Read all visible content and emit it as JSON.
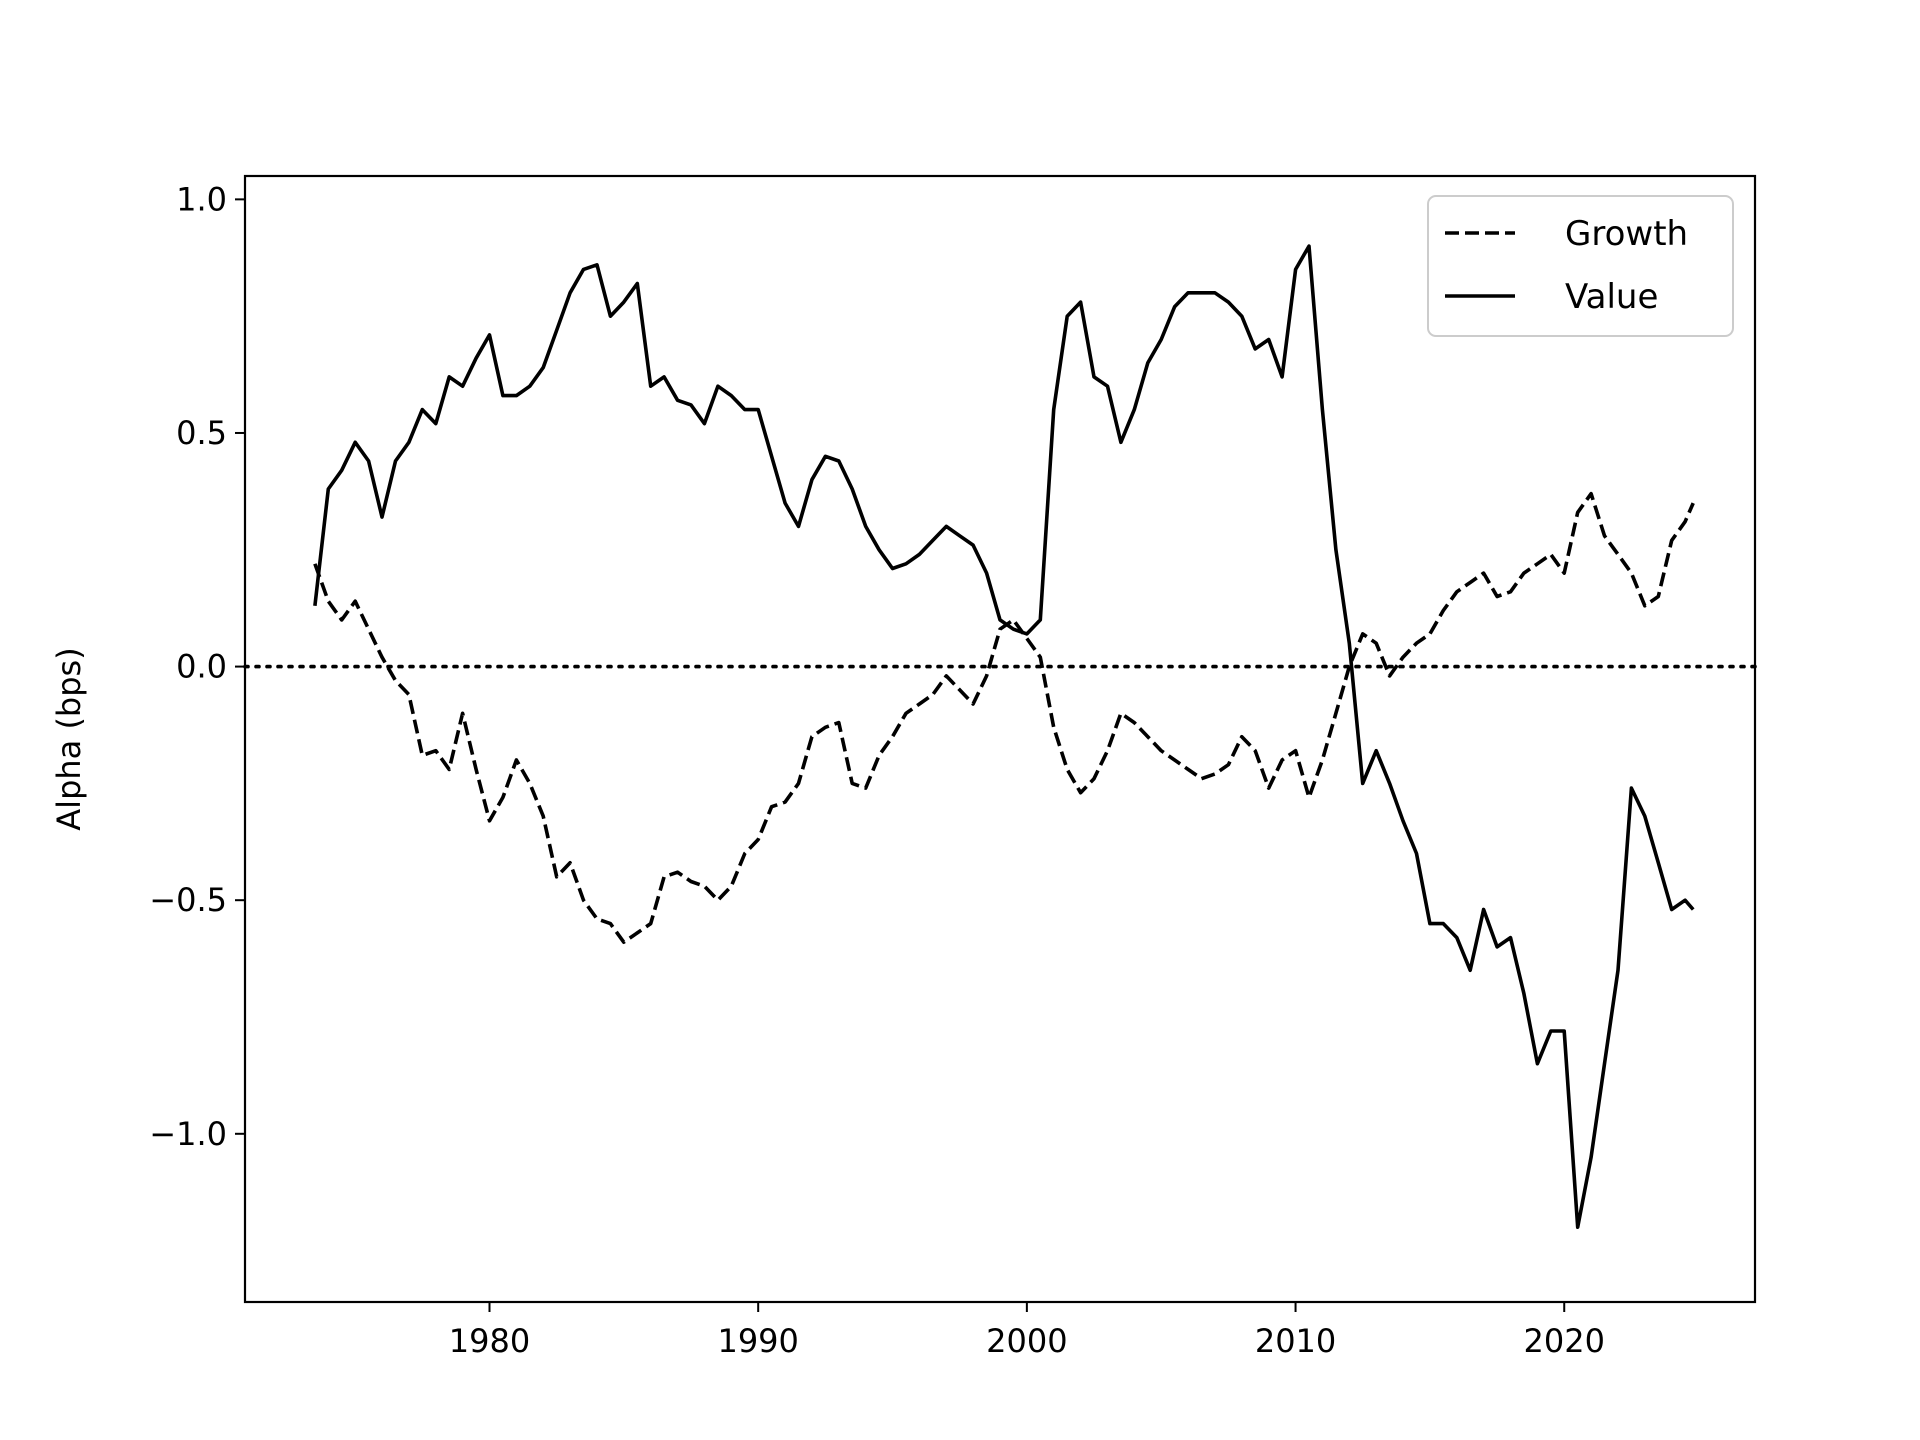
{
  "chart_data": {
    "type": "line",
    "title": "",
    "xlabel": "",
    "ylabel": "Alpha (bps)",
    "xlim": [
      1970.9,
      2027.1
    ],
    "ylim": [
      -1.36,
      1.05
    ],
    "x_ticks": [
      1980,
      1990,
      2000,
      2010,
      2020
    ],
    "x_tick_labels": [
      "1980",
      "1990",
      "2000",
      "2010",
      "2020"
    ],
    "y_ticks": [
      1.0,
      0.5,
      0.0,
      -0.5,
      -1.0
    ],
    "y_tick_labels": [
      "1.0",
      "0.5",
      "0.0",
      "−0.5",
      "−1.0"
    ],
    "grid": false,
    "legend": {
      "position": "upper-right",
      "entries": [
        "Growth",
        "Value"
      ]
    },
    "reference_line": {
      "y": 0.0,
      "style": "dotted"
    },
    "series": [
      {
        "name": "Growth",
        "line_style": "dashed",
        "color": "#000000",
        "x": [
          1973.5,
          1974.0,
          1974.5,
          1975.0,
          1975.5,
          1976.0,
          1976.5,
          1977.0,
          1977.5,
          1978.0,
          1978.5,
          1979.0,
          1979.5,
          1980.0,
          1980.5,
          1981.0,
          1981.5,
          1982.0,
          1982.5,
          1983.0,
          1983.5,
          1984.0,
          1984.5,
          1985.0,
          1985.5,
          1986.0,
          1986.5,
          1987.0,
          1987.5,
          1988.0,
          1988.5,
          1989.0,
          1989.5,
          1990.0,
          1990.5,
          1991.0,
          1991.5,
          1992.0,
          1992.5,
          1993.0,
          1993.5,
          1994.0,
          1994.5,
          1995.0,
          1995.5,
          1996.0,
          1996.5,
          1997.0,
          1997.5,
          1998.0,
          1998.5,
          1999.0,
          1999.5,
          2000.0,
          2000.5,
          2001.0,
          2001.5,
          2002.0,
          2002.5,
          2003.0,
          2003.5,
          2004.0,
          2004.5,
          2005.0,
          2005.5,
          2006.0,
          2006.5,
          2007.0,
          2007.5,
          2008.0,
          2008.5,
          2009.0,
          2009.5,
          2010.0,
          2010.5,
          2011.0,
          2011.5,
          2012.0,
          2012.5,
          2013.0,
          2013.5,
          2014.0,
          2014.5,
          2015.0,
          2015.5,
          2016.0,
          2016.5,
          2017.0,
          2017.5,
          2018.0,
          2018.5,
          2019.0,
          2019.5,
          2020.0,
          2020.5,
          2021.0,
          2021.5,
          2022.0,
          2022.5,
          2023.0,
          2023.5,
          2024.0,
          2024.5,
          2024.8
        ],
        "values": [
          0.22,
          0.14,
          0.1,
          0.14,
          0.08,
          0.02,
          -0.03,
          -0.06,
          -0.19,
          -0.18,
          -0.22,
          -0.1,
          -0.22,
          -0.33,
          -0.28,
          -0.2,
          -0.25,
          -0.32,
          -0.45,
          -0.42,
          -0.5,
          -0.54,
          -0.55,
          -0.59,
          -0.57,
          -0.55,
          -0.45,
          -0.44,
          -0.46,
          -0.47,
          -0.5,
          -0.47,
          -0.4,
          -0.37,
          -0.3,
          -0.29,
          -0.25,
          -0.15,
          -0.13,
          -0.12,
          -0.25,
          -0.26,
          -0.19,
          -0.15,
          -0.1,
          -0.08,
          -0.06,
          -0.02,
          -0.05,
          -0.08,
          -0.02,
          0.08,
          0.1,
          0.06,
          0.02,
          -0.13,
          -0.22,
          -0.27,
          -0.24,
          -0.18,
          -0.1,
          -0.12,
          -0.15,
          -0.18,
          -0.2,
          -0.22,
          -0.24,
          -0.23,
          -0.21,
          -0.15,
          -0.18,
          -0.26,
          -0.2,
          -0.18,
          -0.28,
          -0.2,
          -0.1,
          0.0,
          0.07,
          0.05,
          -0.02,
          0.02,
          0.05,
          0.07,
          0.12,
          0.16,
          0.18,
          0.2,
          0.15,
          0.16,
          0.2,
          0.22,
          0.24,
          0.2,
          0.33,
          0.37,
          0.28,
          0.24,
          0.2,
          0.13,
          0.15,
          0.27,
          0.31,
          0.35
        ]
      },
      {
        "name": "Value",
        "line_style": "solid",
        "color": "#000000",
        "x": [
          1973.5,
          1974.0,
          1974.5,
          1975.0,
          1975.5,
          1976.0,
          1976.5,
          1977.0,
          1977.5,
          1978.0,
          1978.5,
          1979.0,
          1979.5,
          1980.0,
          1980.5,
          1981.0,
          1981.5,
          1982.0,
          1982.5,
          1983.0,
          1983.5,
          1984.0,
          1984.5,
          1985.0,
          1985.5,
          1986.0,
          1986.5,
          1987.0,
          1987.5,
          1988.0,
          1988.5,
          1989.0,
          1989.5,
          1990.0,
          1990.5,
          1991.0,
          1991.5,
          1992.0,
          1992.5,
          1993.0,
          1993.5,
          1994.0,
          1994.5,
          1995.0,
          1995.5,
          1996.0,
          1996.5,
          1997.0,
          1997.5,
          1998.0,
          1998.5,
          1999.0,
          1999.5,
          2000.0,
          2000.5,
          2001.0,
          2001.5,
          2002.0,
          2002.5,
          2003.0,
          2003.5,
          2004.0,
          2004.5,
          2005.0,
          2005.5,
          2006.0,
          2006.5,
          2007.0,
          2007.5,
          2008.0,
          2008.5,
          2009.0,
          2009.5,
          2010.0,
          2010.5,
          2011.0,
          2011.5,
          2012.0,
          2012.5,
          2013.0,
          2013.5,
          2014.0,
          2014.5,
          2015.0,
          2015.5,
          2016.0,
          2016.5,
          2017.0,
          2017.5,
          2018.0,
          2018.5,
          2019.0,
          2019.5,
          2020.0,
          2020.5,
          2021.0,
          2021.5,
          2022.0,
          2022.5,
          2023.0,
          2023.5,
          2024.0,
          2024.5,
          2024.8
        ],
        "values": [
          0.13,
          0.38,
          0.42,
          0.48,
          0.44,
          0.32,
          0.44,
          0.48,
          0.55,
          0.52,
          0.62,
          0.6,
          0.66,
          0.71,
          0.58,
          0.58,
          0.6,
          0.64,
          0.72,
          0.8,
          0.85,
          0.86,
          0.75,
          0.78,
          0.82,
          0.6,
          0.62,
          0.57,
          0.56,
          0.52,
          0.6,
          0.58,
          0.55,
          0.55,
          0.45,
          0.35,
          0.3,
          0.4,
          0.45,
          0.44,
          0.38,
          0.3,
          0.25,
          0.21,
          0.22,
          0.24,
          0.27,
          0.3,
          0.28,
          0.26,
          0.2,
          0.1,
          0.08,
          0.07,
          0.1,
          0.55,
          0.75,
          0.78,
          0.62,
          0.6,
          0.48,
          0.55,
          0.65,
          0.7,
          0.77,
          0.8,
          0.8,
          0.8,
          0.78,
          0.75,
          0.68,
          0.7,
          0.62,
          0.85,
          0.9,
          0.55,
          0.25,
          0.05,
          -0.25,
          -0.18,
          -0.25,
          -0.33,
          -0.4,
          -0.55,
          -0.55,
          -0.58,
          -0.65,
          -0.52,
          -0.6,
          -0.58,
          -0.7,
          -0.85,
          -0.78,
          -0.78,
          -1.2,
          -1.05,
          -0.85,
          -0.65,
          -0.26,
          -0.32,
          -0.42,
          -0.52,
          -0.5,
          -0.52
        ]
      }
    ]
  }
}
